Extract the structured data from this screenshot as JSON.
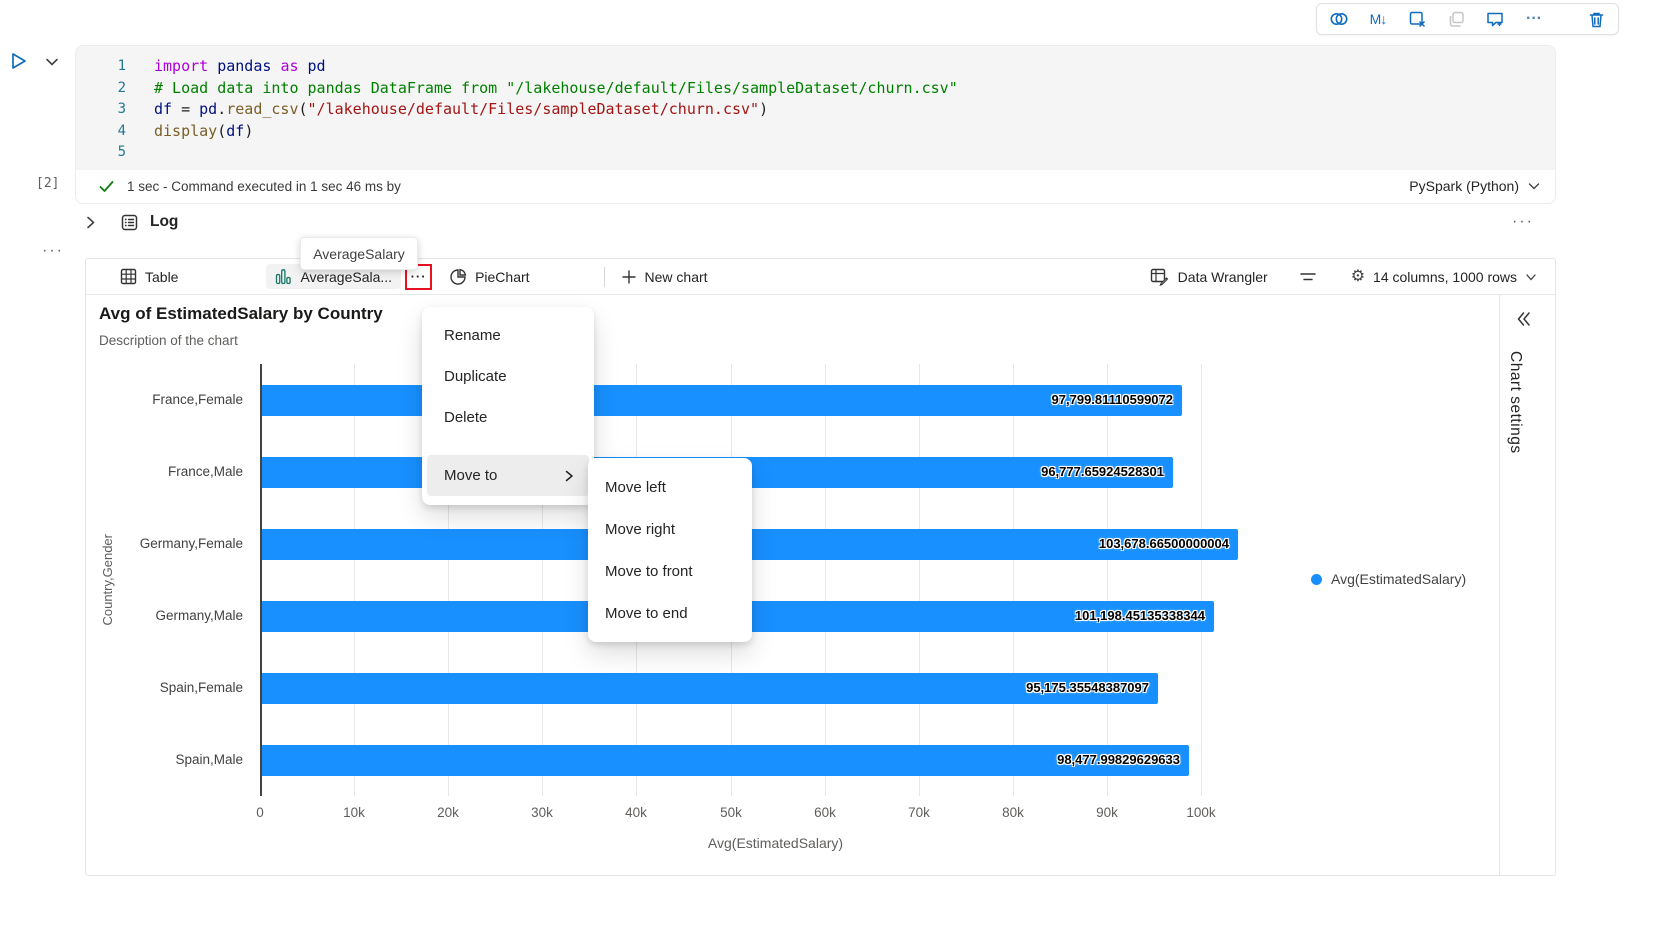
{
  "colors": {
    "accent_blue": "#0f6cbd",
    "bar_blue": "#1890ff",
    "tab_chart_icon_teal": "#117865",
    "annotation_red": "#e81123",
    "check_green": "#107c10"
  },
  "cell_toolbar": {
    "icons": [
      "copilot-icon",
      "markdown-icon",
      "clear-outputs-icon",
      "copy-icon",
      "add-comment-icon",
      "more-icon",
      "delete-cell-icon"
    ],
    "markdown_glyph": "M↓",
    "more_glyph": "···"
  },
  "code_cell": {
    "execution_count": "[2]",
    "status_text": "1 sec - Command executed in 1 sec 46 ms by",
    "kernel_label": "PySpark (Python)",
    "lines": [
      {
        "n": "1",
        "tokens": [
          [
            "import",
            "kw"
          ],
          [
            " ",
            "pl"
          ],
          [
            "pandas",
            "var"
          ],
          [
            " ",
            "pl"
          ],
          [
            "as",
            "kw"
          ],
          [
            " ",
            "pl"
          ],
          [
            "pd",
            "var"
          ]
        ]
      },
      {
        "n": "2",
        "tokens": [
          [
            "# Load data into pandas DataFrame from \"/lakehouse/default/Files/sampleDataset/churn.csv\"",
            "cm"
          ]
        ]
      },
      {
        "n": "3",
        "tokens": [
          [
            "df",
            "var"
          ],
          [
            " = ",
            "pl"
          ],
          [
            "pd",
            "var"
          ],
          [
            ".",
            "pl"
          ],
          [
            "read_csv",
            "fn"
          ],
          [
            "(",
            "pl"
          ],
          [
            "\"/lakehouse/default/Files/sampleDataset/churn.csv\"",
            "str"
          ],
          [
            ")",
            "pl"
          ]
        ]
      },
      {
        "n": "4",
        "tokens": [
          [
            "display",
            "fn"
          ],
          [
            "(",
            "pl"
          ],
          [
            "df",
            "var"
          ],
          [
            ")",
            "pl"
          ]
        ]
      },
      {
        "n": "5",
        "tokens": []
      }
    ]
  },
  "log_section": {
    "label": "Log",
    "more_glyph": "···"
  },
  "left_rail": {
    "more_glyph": "···"
  },
  "tooltip": {
    "text": "AverageSalary"
  },
  "tab_bar": {
    "table_label": "Table",
    "chart_tab_label": "AverageSala...",
    "chart_tab_more_glyph": "···",
    "pie_label": "PieChart",
    "new_chart_label": "New chart",
    "data_wrangler_label": "Data Wrangler",
    "grid_info_label": "14 columns, 1000 rows"
  },
  "context_menu": {
    "items": [
      "Rename",
      "Duplicate",
      "Delete"
    ],
    "move_to_label": "Move to",
    "submenu_items": [
      "Move left",
      "Move right",
      "Move to front",
      "Move to end"
    ]
  },
  "chart": {
    "title": "Avg of EstimatedSalary by Country",
    "description": "Description of the chart",
    "settings_label": "Chart settings"
  },
  "chart_data": {
    "type": "bar",
    "orientation": "horizontal",
    "title": "Avg of EstimatedSalary by Country",
    "subtitle": "Description of the chart",
    "categories": [
      "France,Female",
      "France,Male",
      "Germany,Female",
      "Germany,Male",
      "Spain,Female",
      "Spain,Male"
    ],
    "values": [
      97799.81110599072,
      96777.65924528301,
      103678.66500000004,
      101198.45135338344,
      95175.35548387097,
      98477.99829629633
    ],
    "value_labels": [
      "97,799.81110599072",
      "96,777.65924528301",
      "103,678.66500000004",
      "101,198.45135338344",
      "95,175.35548387097",
      "98,477.99829629633"
    ],
    "xlabel": "Avg(EstimatedSalary)",
    "ylabel": "Country,Gender",
    "x_ticks": [
      "0",
      "10k",
      "20k",
      "30k",
      "40k",
      "50k",
      "60k",
      "70k",
      "80k",
      "90k",
      "100k"
    ],
    "x_tick_values": [
      0,
      10000,
      20000,
      30000,
      40000,
      50000,
      60000,
      70000,
      80000,
      90000,
      100000
    ],
    "xlim": [
      0,
      109500
    ],
    "grid": true,
    "legend": [
      "Avg(EstimatedSalary)"
    ],
    "legend_position": "right",
    "series_color": "#1890ff"
  }
}
